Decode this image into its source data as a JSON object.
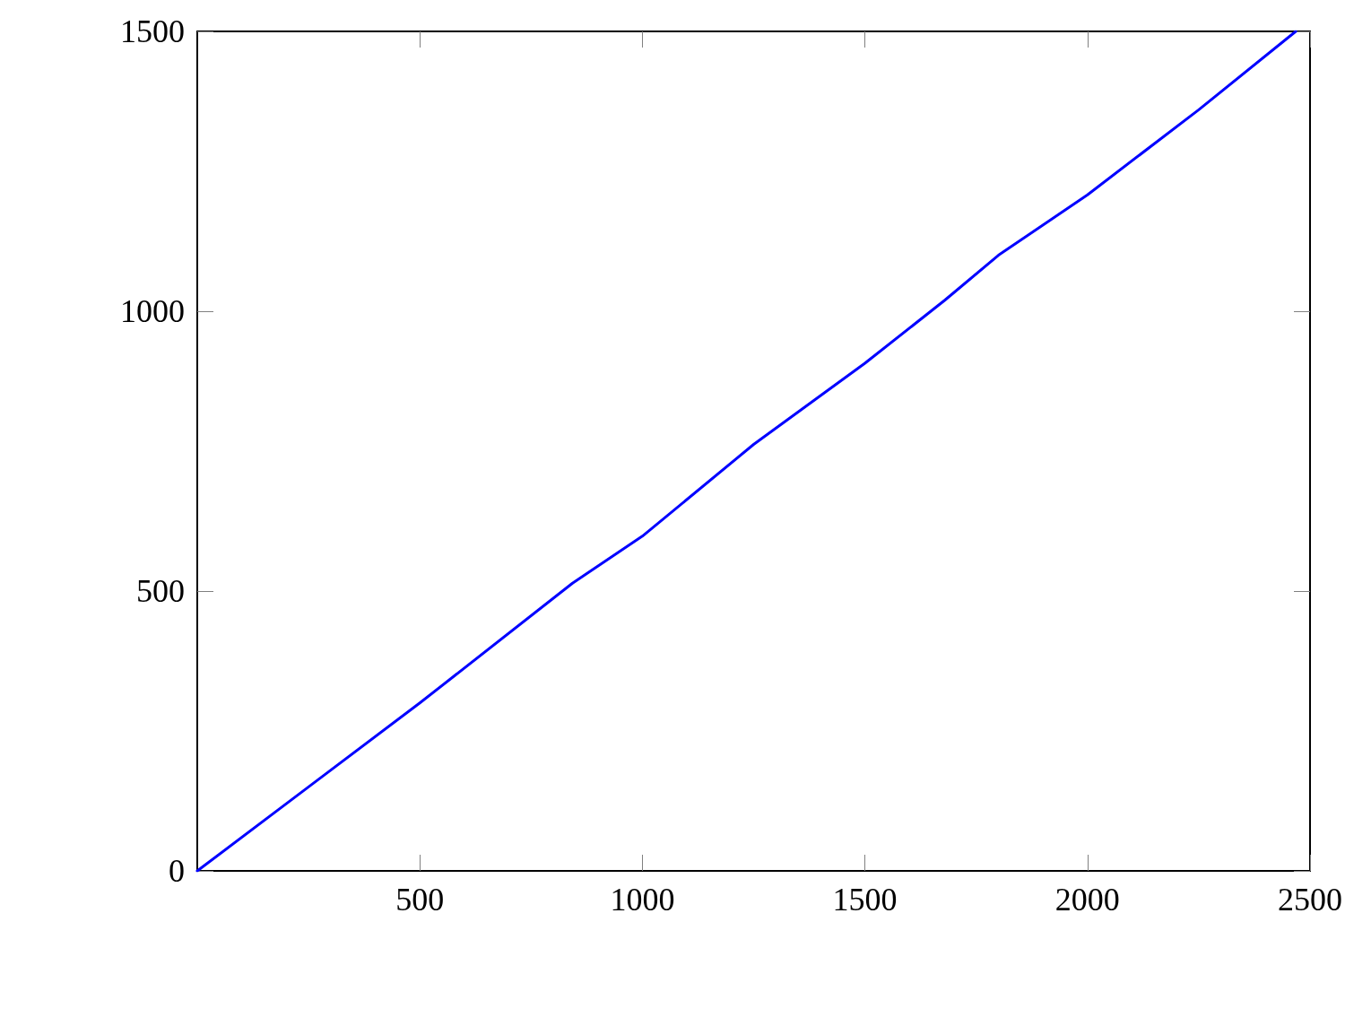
{
  "chart_data": {
    "type": "line",
    "color": "#0000ff",
    "x": [
      0,
      250,
      500,
      843,
      1000,
      1250,
      1500,
      1680,
      1800,
      2000,
      2250,
      2468
    ],
    "values": [
      0,
      150,
      300,
      514,
      598,
      762,
      907,
      1020,
      1100,
      1208,
      1360,
      1500
    ],
    "xlim": [
      0,
      2500
    ],
    "xticks": [
      500,
      1000,
      1500,
      2000,
      2500
    ],
    "ylim": [
      0,
      1500
    ],
    "yticks": [
      0,
      500,
      1000,
      1500
    ],
    "grid": false,
    "marker": "none",
    "line_style": "solid"
  }
}
